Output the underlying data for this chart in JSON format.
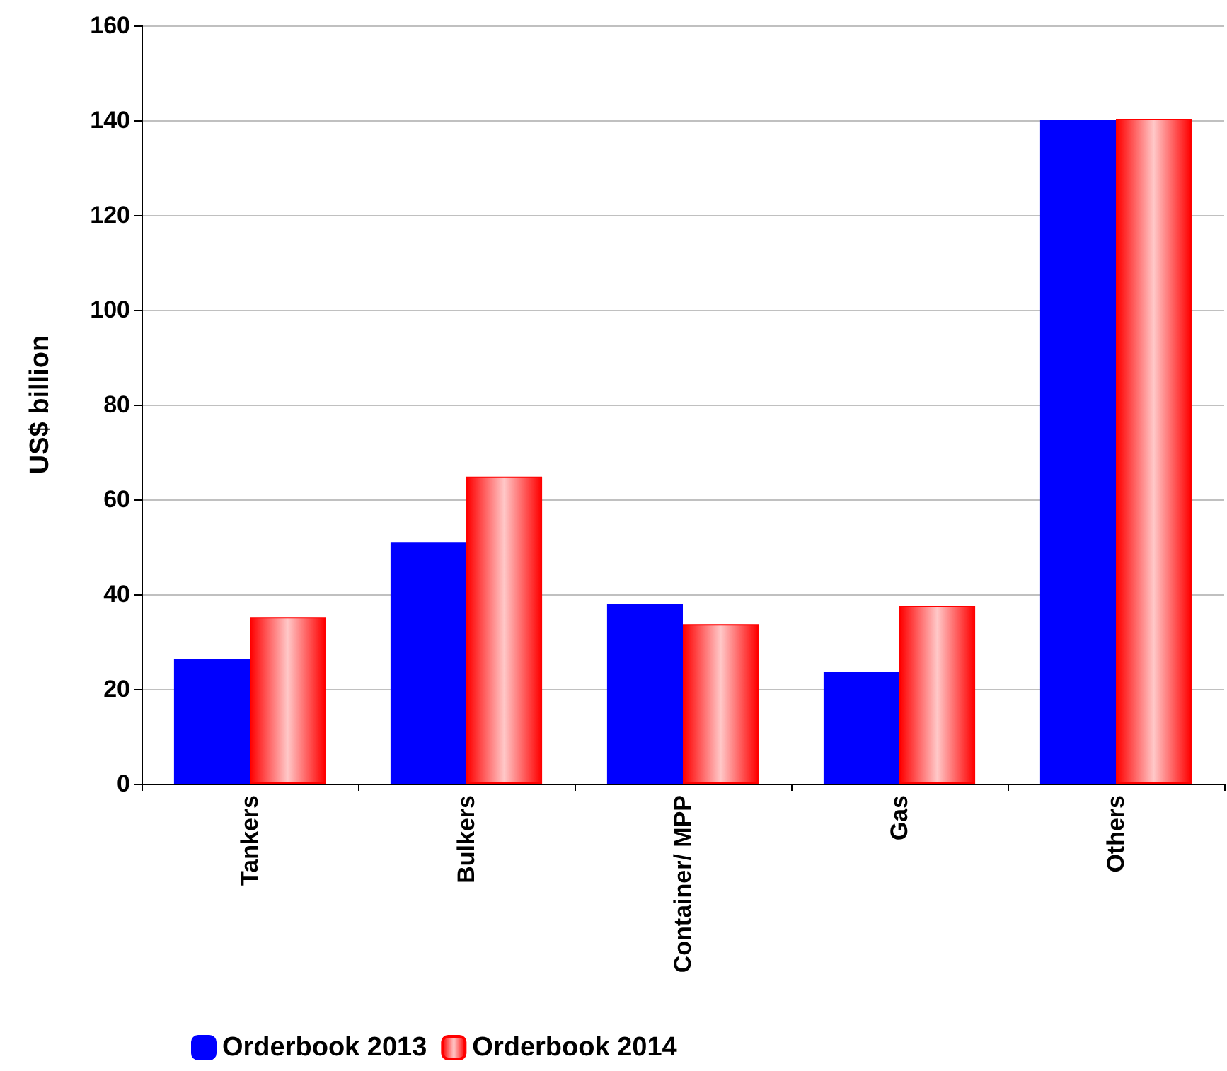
{
  "chart_data": {
    "type": "bar",
    "ylabel": "US$ billion",
    "categories": [
      "Tankers",
      "Bulkers",
      "Container/ MPP",
      "Gas",
      "Others"
    ],
    "series": [
      {
        "name": "Orderbook 2013",
        "color": "#0000ff",
        "values": [
          26.3,
          51,
          37.9,
          23.6,
          140
        ]
      },
      {
        "name": "Orderbook 2014",
        "color": "#ff0000",
        "values": [
          35.2,
          64.8,
          33.7,
          37.6,
          140.3
        ]
      }
    ],
    "ylim": [
      0,
      160
    ],
    "yticks": [
      0,
      20,
      40,
      60,
      80,
      100,
      120,
      140,
      160
    ],
    "grid": "y",
    "legend": "bottom"
  }
}
